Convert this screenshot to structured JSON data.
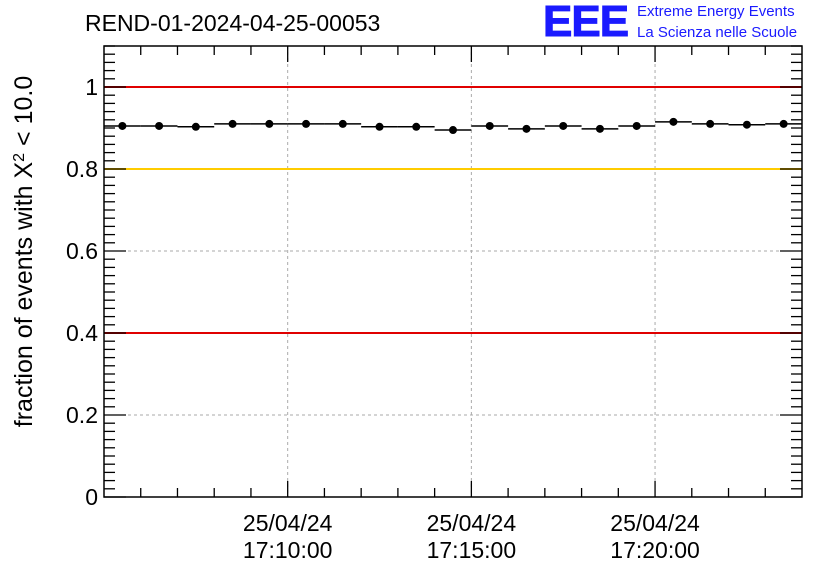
{
  "header": {
    "run_title": "REND-01-2024-04-25-00053",
    "logo_text": "EEE",
    "logo_line1": "Extreme Energy Events",
    "logo_line2": "La Scienza nelle Scuole"
  },
  "colors": {
    "red_line": "#e00000",
    "yellow_line": "#ffcc00",
    "points": "#000000",
    "logo": "#1a1aff"
  },
  "chart_data": {
    "type": "scatter",
    "ylabel": "fraction of events with X² < 10.0",
    "ylabel_parts": {
      "prefix": "fraction of events with X",
      "sup": "2",
      "suffix": " < 10.0"
    },
    "ylim": [
      0,
      1.1
    ],
    "yticks": [
      0,
      0.2,
      0.4,
      0.6,
      0.8,
      1
    ],
    "ytick_labels": [
      "0",
      "0.2",
      "0.4",
      "0.6",
      "0.8",
      "1"
    ],
    "xlim": [
      "17:05:00",
      "17:24:00"
    ],
    "xticks": [
      {
        "time": "17:10:00",
        "date_label": "25/04/24",
        "time_label": "17:10:00"
      },
      {
        "time": "17:15:00",
        "date_label": "25/04/24",
        "time_label": "17:15:00"
      },
      {
        "time": "17:20:00",
        "date_label": "25/04/24",
        "time_label": "17:20:00"
      }
    ],
    "minor_tick_minutes": 1,
    "grid": true,
    "reference_lines": [
      {
        "y": 1.0,
        "color": "#e00000"
      },
      {
        "y": 0.8,
        "color": "#ffcc00"
      },
      {
        "y": 0.4,
        "color": "#e00000"
      }
    ],
    "bin_width_seconds": 60,
    "points": [
      {
        "x": "17:05:30",
        "y": 0.905
      },
      {
        "x": "17:06:30",
        "y": 0.905
      },
      {
        "x": "17:07:30",
        "y": 0.903
      },
      {
        "x": "17:08:30",
        "y": 0.91
      },
      {
        "x": "17:09:30",
        "y": 0.91
      },
      {
        "x": "17:10:30",
        "y": 0.91
      },
      {
        "x": "17:11:30",
        "y": 0.91
      },
      {
        "x": "17:12:30",
        "y": 0.903
      },
      {
        "x": "17:13:30",
        "y": 0.903
      },
      {
        "x": "17:14:30",
        "y": 0.895
      },
      {
        "x": "17:15:30",
        "y": 0.905
      },
      {
        "x": "17:16:30",
        "y": 0.898
      },
      {
        "x": "17:17:30",
        "y": 0.905
      },
      {
        "x": "17:18:30",
        "y": 0.898
      },
      {
        "x": "17:19:30",
        "y": 0.905
      },
      {
        "x": "17:20:30",
        "y": 0.915
      },
      {
        "x": "17:21:30",
        "y": 0.91
      },
      {
        "x": "17:22:30",
        "y": 0.908
      },
      {
        "x": "17:23:30",
        "y": 0.91
      }
    ]
  }
}
